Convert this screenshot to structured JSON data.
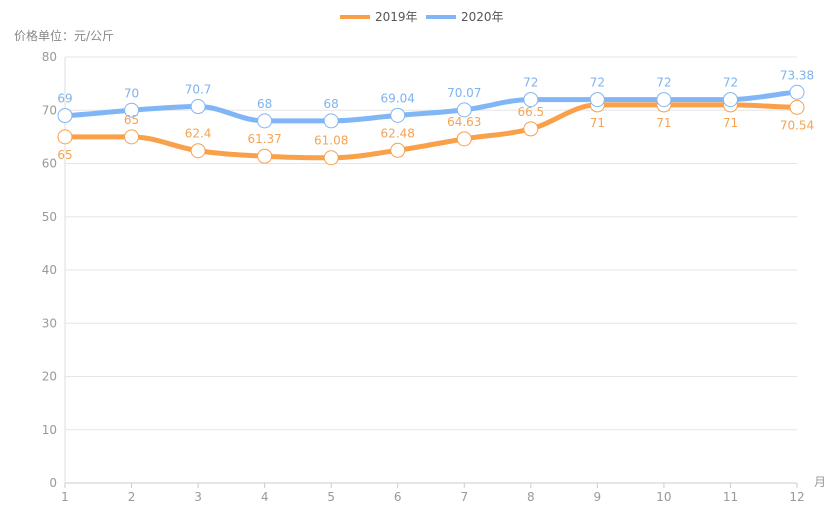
{
  "chart_data": {
    "type": "line",
    "yunit_label": "价格单位：元/公斤",
    "xlabel": "月",
    "x": [
      1,
      2,
      3,
      4,
      5,
      6,
      7,
      8,
      9,
      10,
      11,
      12
    ],
    "x_tick_labels": [
      "1",
      "2",
      "3",
      "4",
      "5",
      "6",
      "7",
      "8",
      "9",
      "10",
      "11",
      "12"
    ],
    "ylim": [
      0,
      80
    ],
    "y_ticks": [
      0,
      10,
      20,
      30,
      40,
      50,
      60,
      70,
      80
    ],
    "grid": "horizontal",
    "legend": "top-center",
    "smooth": true,
    "series": [
      {
        "name": "2019年",
        "color": "#F9A04A",
        "values": [
          65,
          65,
          62.4,
          61.37,
          61.08,
          62.48,
          64.63,
          66.5,
          71,
          71,
          71,
          70.54
        ],
        "labels": [
          "65",
          "65",
          "62.4",
          "61.37",
          "61.08",
          "62.48",
          "64.63",
          "66.5",
          "71",
          "71",
          "71",
          "70.54"
        ]
      },
      {
        "name": "2020年",
        "color": "#80B6F5",
        "values": [
          69,
          70,
          70.7,
          68,
          68,
          69.04,
          70.07,
          72,
          72,
          72,
          72,
          73.38
        ],
        "labels": [
          "69",
          "70",
          "70.7",
          "68",
          "68",
          "69.04",
          "70.07",
          "72",
          "72",
          "72",
          "72",
          "73.38"
        ]
      }
    ]
  }
}
